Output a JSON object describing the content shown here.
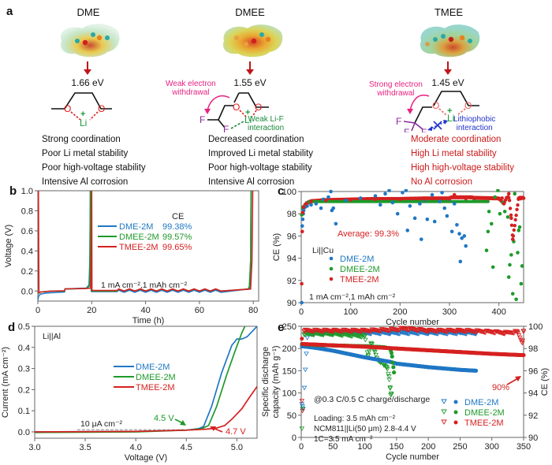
{
  "panel_a": {
    "label": "a",
    "molecules": [
      {
        "name": "DME",
        "energy": "1.66 eV",
        "annotations": [],
        "properties": [
          "Strong coordination",
          "Poor Li metal stability",
          "Poor high-voltage stability",
          "Intensive Al corrosion"
        ],
        "properties_color": "#111111"
      },
      {
        "name": "DMEE",
        "energy": "1.55 eV",
        "annotations": [
          {
            "text": [
              "Weak electron",
              "withdrawal"
            ],
            "color": "#e8217f"
          },
          {
            "text": [
              "Weak Li-F",
              "interaction"
            ],
            "color": "#1a8a3a"
          }
        ],
        "properties": [
          "Decreased coordination",
          "Improved Li metal stability",
          "Poor high-voltage stability",
          "Intensive Al corrosion"
        ],
        "properties_color": "#111111"
      },
      {
        "name": "TMEE",
        "energy": "1.45 eV",
        "annotations": [
          {
            "text": [
              "Strong electron",
              "withdrawal"
            ],
            "color": "#e8217f"
          },
          {
            "text": [
              "Lithiophobic",
              "interaction"
            ],
            "color": "#2233cc"
          }
        ],
        "properties": [
          "Moderate coordination",
          "High Li metal stability",
          "High high-voltage stability",
          "No Al corrosion"
        ],
        "properties_color": "#cc1a1a"
      }
    ],
    "atom_labels": {
      "oxygen": "O",
      "lithium": "Li",
      "fluorine": "F",
      "charge": "+"
    }
  },
  "colors": {
    "DME": "#1f77c4",
    "DMEE": "#1e9a2a",
    "TMEE": "#d62020",
    "oxygen": "#e21b1b",
    "lithium": "#1a9a3a",
    "fluorine": "#8a2a9a",
    "arrow": "#c0141a",
    "ref_line": "#aaaaaa"
  },
  "chart_data": [
    {
      "panel": "b",
      "type": "line",
      "title": "",
      "xlabel": "Time (h)",
      "ylabel": "Voltage (V)",
      "xlim": [
        0,
        82
      ],
      "ylim": [
        -0.1,
        1.0
      ],
      "xticks": [
        0,
        20,
        40,
        60,
        80
      ],
      "yticks": [
        0.0,
        0.2,
        0.4,
        0.6,
        0.8,
        1.0
      ],
      "xtick_labels": [
        "0",
        "20",
        "40",
        "60",
        "80"
      ],
      "ytick_labels": [
        "0.0",
        "0.2",
        "0.4",
        "0.6",
        "0.8",
        "1.0"
      ],
      "legend": {
        "title": "CE",
        "placement": "top-center",
        "entries": [
          {
            "name": "DME-2M",
            "ce": "99.38%"
          },
          {
            "name": "DMEE-2M",
            "ce": "99.57%"
          },
          {
            "name": "TMEE-2M",
            "ce": "99.65%"
          }
        ]
      },
      "annotation": "1 mA cm⁻²,1 mAh cm⁻²",
      "series": [
        {
          "name": "DME-2M",
          "x": [
            0,
            0.3,
            1,
            3,
            6,
            9.9,
            10.1,
            14,
            18,
            19,
            19.3,
            19.5,
            19.6,
            19.8,
            20,
            29.5,
            30,
            78,
            78.8,
            79,
            79.2
          ],
          "y": [
            -0.09,
            -0.05,
            -0.03,
            -0.02,
            -0.015,
            -0.01,
            0.02,
            0.025,
            0.03,
            0.06,
            0.3,
            1.0,
            1.0,
            0.0,
            -0.005,
            -0.005,
            0.02,
            0.02,
            0.05,
            0.3,
            1.0
          ]
        },
        {
          "name": "DMEE-2M",
          "x": [
            0,
            0.3,
            1,
            5,
            9.9,
            10.1,
            18,
            19.2,
            19.4,
            19.5,
            19.9,
            29.5,
            30,
            78.5,
            79,
            79.2
          ],
          "y": [
            -0.03,
            -0.02,
            -0.01,
            0.0,
            0.0,
            0.02,
            0.025,
            0.05,
            0.4,
            1.0,
            0.0,
            0.0,
            0.02,
            0.02,
            0.3,
            1.0
          ]
        },
        {
          "name": "TMEE-2M",
          "x": [
            0,
            0.2,
            0.4,
            1,
            5,
            9.9,
            10.1,
            18,
            19.6,
            19.8,
            20,
            20.1,
            29.5,
            30,
            79,
            79.5,
            79.8
          ],
          "y": [
            1.0,
            1.0,
            -0.02,
            -0.01,
            0.0,
            0.003,
            0.022,
            0.025,
            0.03,
            0.3,
            1.0,
            0.005,
            0.005,
            0.02,
            0.02,
            0.3,
            1.0
          ]
        }
      ],
      "cycling_region": {
        "x_start": 30,
        "x_end": 70,
        "period": 4,
        "high": 0.02,
        "low": -0.01
      }
    },
    {
      "panel": "c",
      "type": "scatter",
      "xlabel": "Cycle number",
      "ylabel": "CE (%)",
      "xlim": [
        0,
        450
      ],
      "ylim": [
        90,
        100
      ],
      "xticks": [
        0,
        100,
        200,
        300,
        400
      ],
      "yticks": [
        90,
        92,
        94,
        96,
        98,
        100
      ],
      "xtick_labels": [
        "0",
        "100",
        "200",
        "300",
        "400"
      ],
      "ytick_labels": [
        "90",
        "92",
        "94",
        "96",
        "98",
        "100"
      ],
      "legend": {
        "placement": "center-left",
        "entries": [
          "DME-2M",
          "DMEE-2M",
          "TMEE-2M"
        ]
      },
      "annotations": [
        "Average: 99.3%",
        "Li||Cu",
        "1 mA cm⁻²,1 mAh cm⁻²"
      ],
      "series": [
        {
          "name": "DME-2M",
          "x": [
            1,
            2,
            3,
            4,
            5,
            8,
            12,
            20,
            30,
            40,
            45,
            55,
            60,
            62,
            65,
            70,
            90,
            120,
            150,
            160,
            170,
            178,
            185,
            195,
            205,
            212,
            215,
            220,
            230,
            240,
            243,
            250,
            255,
            265,
            270,
            280,
            285,
            290,
            295,
            300,
            305,
            310,
            315,
            320,
            322,
            325,
            330,
            333
          ],
          "y": [
            90.0,
            96.9,
            97.5,
            98.0,
            98.3,
            98.6,
            98.7,
            98.8,
            98.9,
            98.5,
            99.3,
            99.5,
            100.0,
            98.3,
            98.5,
            97.1,
            99.2,
            99.4,
            99.6,
            98.8,
            99.8,
            100.1,
            99.0,
            98.0,
            99.9,
            100.1,
            96.5,
            98.7,
            97.6,
            98.9,
            95.7,
            99.2,
            97.5,
            99.7,
            97.3,
            99.1,
            99.9,
            98.5,
            97.8,
            99.3,
            96.4,
            98.9,
            97.0,
            96.2,
            93.7,
            95.8,
            96.0,
            95.1
          ]
        },
        {
          "name": "DMEE-2M",
          "x": [
            1,
            3,
            10,
            50,
            150,
            250,
            350,
            375,
            378,
            380,
            385,
            388,
            392,
            398,
            402,
            408,
            412,
            418,
            420,
            422,
            425,
            428,
            430,
            432,
            435,
            438,
            440,
            442,
            445,
            447
          ],
          "y": [
            97.9,
            98.6,
            98.9,
            99.2,
            99.3,
            99.3,
            99.2,
            94.7,
            96.4,
            98.2,
            97.1,
            93.2,
            99.5,
            100.1,
            98.0,
            99.0,
            98.2,
            97.7,
            92.3,
            93.4,
            94.3,
            90.8,
            95.5,
            99.8,
            90.3,
            94.5,
            96.5,
            96.8,
            91.7,
            93.3
          ]
        },
        {
          "name": "TMEE-2M",
          "x": [
            1,
            2,
            3,
            5,
            10,
            20,
            50,
            100,
            150,
            200,
            250,
            300,
            310,
            350,
            400,
            410,
            420,
            425,
            428,
            440,
            450
          ],
          "y": [
            91.7,
            96.4,
            98.1,
            98.6,
            98.9,
            99.1,
            99.2,
            99.25,
            99.3,
            99.3,
            99.35,
            99.35,
            99.7,
            99.4,
            99.35,
            98.9,
            99.8,
            97.6,
            95.7,
            99.4,
            99.4
          ]
        }
      ]
    },
    {
      "panel": "d",
      "type": "line",
      "xlabel": "Voltage (V)",
      "ylabel": "Current (mA cm⁻²)",
      "xlim": [
        3.0,
        5.2
      ],
      "ylim": [
        -0.03,
        0.5
      ],
      "xticks": [
        3.0,
        3.5,
        4.0,
        4.5,
        5.0
      ],
      "yticks": [
        0.0,
        0.1,
        0.2,
        0.3,
        0.4,
        0.5
      ],
      "xtick_labels": [
        "3.0",
        "3.5",
        "4.0",
        "4.5",
        "5.0"
      ],
      "ytick_labels": [
        "0.0",
        "0.1",
        "0.2",
        "0.3",
        "0.4",
        "0.5"
      ],
      "legend": {
        "placement": "center",
        "entries": [
          "DME-2M",
          "DMEE-2M",
          "TMEE-2M"
        ]
      },
      "annotations": [
        {
          "text": "Li||Al"
        },
        {
          "text": "10 μA cm⁻²",
          "reference_y": 0.01,
          "x_from": 3.42,
          "x_to": 4.6
        },
        {
          "text": "4.5 V",
          "series": "DMEE-2M",
          "x": 4.5
        },
        {
          "text": "4.7 V",
          "series": "TMEE-2M",
          "x": 4.7
        }
      ],
      "series": [
        {
          "name": "DME-2M",
          "x": [
            3.0,
            4.0,
            4.5,
            4.62,
            4.67,
            4.75,
            4.85,
            4.95,
            5.0,
            5.05,
            5.1,
            5.2
          ],
          "y": [
            0.0,
            0.002,
            0.008,
            0.015,
            0.025,
            0.12,
            0.28,
            0.41,
            0.44,
            0.44,
            0.45,
            0.5
          ]
        },
        {
          "name": "DMEE-2M",
          "x": [
            3.0,
            4.0,
            4.5,
            4.65,
            4.72,
            4.8,
            4.9,
            4.98,
            5.05,
            5.08
          ],
          "y": [
            -0.003,
            0.0,
            0.008,
            0.015,
            0.03,
            0.12,
            0.27,
            0.38,
            0.47,
            0.5
          ]
        },
        {
          "name": "TMEE-2M",
          "x": [
            3.0,
            4.0,
            4.5,
            4.7,
            4.8,
            4.88,
            4.95,
            5.05,
            5.12,
            5.2
          ],
          "y": [
            0.0,
            0.002,
            0.008,
            0.013,
            0.018,
            0.03,
            0.06,
            0.11,
            0.16,
            0.215
          ]
        }
      ]
    },
    {
      "panel": "e",
      "type": "scatter",
      "xlabel": "Cycle number",
      "ylabel": "Specific discharge capacity (mAh g⁻¹)",
      "y2label": "CE (%)",
      "xlim": [
        0,
        350
      ],
      "ylim": [
        0,
        250
      ],
      "y2lim": [
        90,
        100
      ],
      "xticks": [
        0,
        50,
        100,
        150,
        200,
        250,
        300,
        350
      ],
      "yticks": [
        0,
        50,
        100,
        150,
        200,
        250
      ],
      "y2ticks": [
        90,
        92,
        94,
        96,
        98,
        100
      ],
      "xtick_labels": [
        "0",
        "50",
        "100",
        "150",
        "200",
        "250",
        "300",
        "350"
      ],
      "ytick_labels": [
        "0",
        "50",
        "100",
        "150",
        "200",
        "250"
      ],
      "y2tick_labels": [
        "90",
        "92",
        "94",
        "96",
        "98",
        "100"
      ],
      "legend": {
        "placement": "bottom-right",
        "entries": [
          "DME-2M",
          "DMEE-2M",
          "TMEE-2M"
        ],
        "markers": [
          "open-triangle (CE)",
          "filled-circle (capacity)"
        ]
      },
      "annotations": [
        "@0.3 C/0.5 C charge/discharge",
        "Loading: 3.5 mAh cm⁻²",
        "NCM811||Li(50 μm) 2.8-4.4 V",
        "1C=3.5 mA cm⁻²",
        "90%"
      ],
      "capacity_series": [
        {
          "name": "DME-2M",
          "x": [
            1,
            20,
            50,
            100,
            140,
            150,
            200,
            250,
            275
          ],
          "y": [
            205,
            202,
            195,
            180,
            170,
            166,
            158,
            152,
            150
          ]
        },
        {
          "name": "DMEE-2M",
          "x": [
            1,
            20,
            50,
            100,
            130,
            140,
            142,
            143,
            144,
            145,
            146
          ],
          "y": [
            210,
            208,
            207,
            205,
            203,
            200,
            190,
            182,
            168,
            158,
            146
          ]
        },
        {
          "name": "TMEE-2M",
          "x": [
            1,
            2,
            20,
            50,
            100,
            150,
            200,
            250,
            300,
            350
          ],
          "y": [
            222,
            210,
            209,
            207,
            204,
            200,
            196,
            192,
            188,
            185
          ]
        }
      ],
      "ce_series": [
        {
          "name": "DME-2M",
          "x": [
            1,
            2,
            3,
            10,
            50,
            100,
            140,
            200,
            250,
            275
          ],
          "y": [
            93.0,
            92.8,
            92.6,
            99.4,
            99.4,
            99.4,
            99.4,
            99.4,
            99.4,
            99.4
          ]
        },
        {
          "name": "DMEE-2M",
          "x": [
            1,
            2,
            5,
            50,
            100,
            105,
            110,
            115,
            120,
            125,
            130,
            135,
            138,
            140,
            141,
            142
          ],
          "y": [
            90.8,
            92.6,
            99.3,
            99.3,
            99.1,
            97.3,
            98.5,
            97.8,
            97.0,
            96.8,
            96.5,
            96.3,
            95.5,
            94.5,
            93.8,
            93.9
          ]
        },
        {
          "name": "TMEE-2M",
          "x": [
            1,
            2,
            5,
            50,
            100,
            150,
            160,
            200,
            250,
            300,
            320,
            340,
            348,
            350
          ],
          "y": [
            93.3,
            92.4,
            99.6,
            99.6,
            99.6,
            99.7,
            99.8,
            99.6,
            99.6,
            99.5,
            99.4,
            99.5,
            98.5,
            99.6
          ]
        }
      ],
      "retention_label": "90%"
    }
  ]
}
